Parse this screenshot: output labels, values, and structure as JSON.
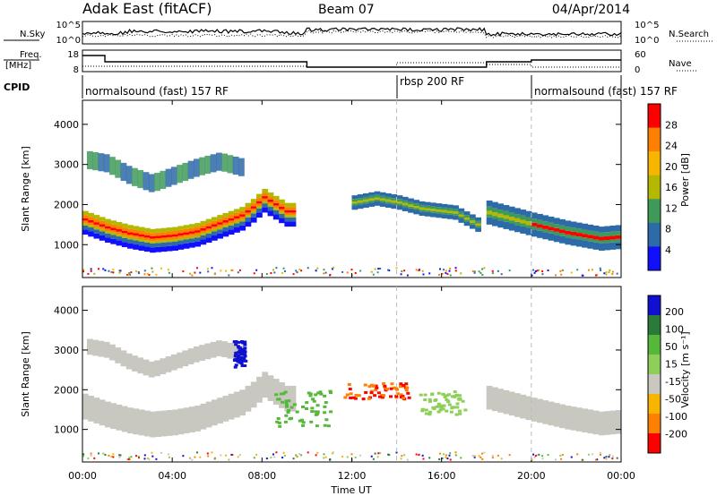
{
  "header": {
    "title_left": "Adak East (fitACF)",
    "title_center": "Beam 07",
    "title_right": "04/Apr/2014"
  },
  "top_panels": {
    "nsky_label": "N.Sky",
    "nsearch_label": "N.Search",
    "log_ticks": [
      "10^5",
      "10^0"
    ],
    "freq_label_line1": "Freq.",
    "freq_label_line2": "[MHz]",
    "freq_ticks": [
      "18",
      "8"
    ],
    "nave_label": "Nave",
    "nave_ticks": [
      "60",
      "0"
    ],
    "cpid_label": "CPID"
  },
  "cpid_segments": [
    {
      "label": "normalsound (fast) 157 RF",
      "start_h": 0,
      "end_h": 14
    },
    {
      "label": "rbsp 200 RF",
      "start_h": 14,
      "end_h": 20
    },
    {
      "label": "normalsound (fast) 157 RF",
      "start_h": 20,
      "end_h": 24
    }
  ],
  "panel_power": {
    "ylabel": "Slant Range [km]",
    "colorbar_label": "Power [dB]",
    "colorbar_ticks": [
      "28",
      "24",
      "20",
      "16",
      "12",
      "8",
      "4"
    ],
    "colorbar_colors": [
      "#ff0000",
      "#ff7f00",
      "#f7b500",
      "#b5b800",
      "#3f9a5a",
      "#2d6aa8",
      "#1010ff"
    ]
  },
  "panel_velocity": {
    "ylabel": "Slant Range [km]",
    "colorbar_label": "Velocity [m s⁻¹]",
    "colorbar_ticks": [
      "200",
      "100",
      "50",
      "15",
      "-15",
      "-50",
      "-100",
      "-200"
    ],
    "colorbar_colors": [
      "#1010d0",
      "#2a7a3a",
      "#55b83a",
      "#8ecf5a",
      "#c8c8c0",
      "#f7b500",
      "#ff7f00",
      "#ff0000"
    ]
  },
  "chart_data": {
    "type": "heatmap",
    "title": "Adak East (fitACF)",
    "subtitle": "Beam 07",
    "date": "04/Apr/2014",
    "xlabel": "Time UT",
    "x_ticks": [
      "00:00",
      "04:00",
      "08:00",
      "12:00",
      "16:00",
      "20:00",
      "00:00"
    ],
    "xlim_hours": [
      0,
      24
    ],
    "ylabel": "Slant Range [km]",
    "y_ticks": [
      1000,
      2000,
      3000,
      4000
    ],
    "ylim_km": [
      180,
      4600
    ],
    "mode_change_hours": [
      14,
      20
    ],
    "power_db_range": [
      0,
      30
    ],
    "velocity_range": [
      -200,
      200
    ],
    "main_band_km": [
      [
        0,
        1600
      ],
      [
        1,
        1400
      ],
      [
        2,
        1250
      ],
      [
        3,
        1150
      ],
      [
        4,
        1200
      ],
      [
        5,
        1300
      ],
      [
        6,
        1500
      ],
      [
        7,
        1700
      ],
      [
        7.5,
        1900
      ],
      [
        8,
        2150
      ],
      [
        9,
        1800
      ]
    ],
    "upper_band_km": [
      [
        0,
        3100
      ],
      [
        1,
        3000
      ],
      [
        2,
        2700
      ],
      [
        3,
        2500
      ],
      [
        4,
        2700
      ],
      [
        5,
        2900
      ],
      [
        6,
        3050
      ],
      [
        7,
        2900
      ]
    ],
    "afternoon_echo_km": [
      [
        12,
        2050
      ],
      [
        13,
        2150
      ],
      [
        14,
        2050
      ],
      [
        15,
        1900
      ],
      [
        16.5,
        1800
      ],
      [
        17.5,
        1500
      ],
      [
        18,
        1800
      ],
      [
        19,
        1650
      ],
      [
        20,
        1500
      ],
      [
        21.5,
        1300
      ],
      [
        23,
        1150
      ],
      [
        24,
        1200
      ]
    ],
    "velocity_features": [
      {
        "hours": [
          6.7,
          7.2
        ],
        "km": [
          2600,
          3300
        ],
        "velocity": "positive (200)"
      },
      {
        "hours": [
          8.5,
          11
        ],
        "km": [
          1100,
          2000
        ],
        "velocity": "50 to 100"
      },
      {
        "hours": [
          11.5,
          14.5
        ],
        "km": [
          1800,
          2200
        ],
        "velocity": "-100 to -200"
      },
      {
        "hours": [
          15,
          17
        ],
        "km": [
          1400,
          2000
        ],
        "velocity": "50 to 100"
      },
      {
        "hours": [
          0,
          8
        ],
        "km": [
          1100,
          1900
        ],
        "velocity": "-15 to 15"
      },
      {
        "hours": [
          18,
          24
        ],
        "km": [
          1100,
          1800
        ],
        "velocity": "-15 to 15"
      }
    ]
  }
}
